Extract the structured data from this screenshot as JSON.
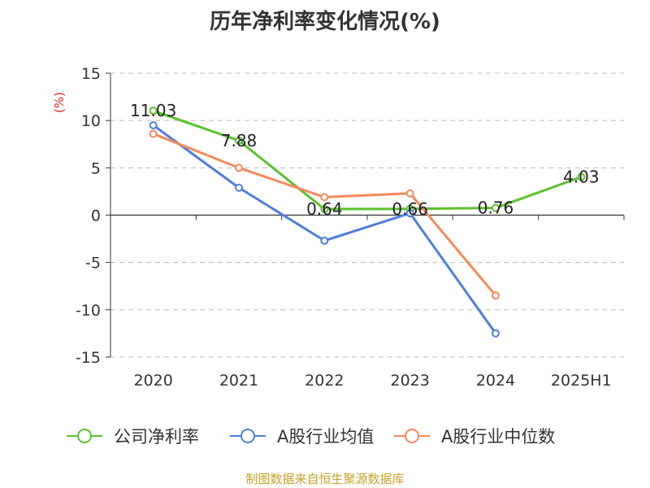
{
  "title": "历年净利率变化情况(%)",
  "source": "制图数据来自恒生聚源数据库",
  "colors": {
    "company": "#5cc22c",
    "industry_avg": "#4e7fdd",
    "industry_median": "#f5895a",
    "ylabel": "#e02020",
    "axis": "#333333",
    "grid": "#bbbbbb",
    "tick_text": "#333333"
  },
  "chart_data": {
    "type": "line",
    "title": "历年净利率变化情况(%)",
    "ylabel": "(%)",
    "xlabel": "",
    "ylim": [
      -15,
      15
    ],
    "yticks": [
      15,
      10,
      5,
      0,
      -5,
      -10,
      -15
    ],
    "categories": [
      "2020",
      "2021",
      "2022",
      "2023",
      "2024",
      "2025H1"
    ],
    "grid": true,
    "legend_position": "bottom",
    "series": [
      {
        "name": "公司净利率",
        "color_key": "company",
        "values": [
          11.03,
          7.88,
          0.64,
          0.66,
          0.76,
          4.03
        ],
        "labels": [
          "11.03",
          "7.88",
          "0.64",
          "0.66",
          "0.76",
          "4.03"
        ]
      },
      {
        "name": "A股行业均值",
        "color_key": "industry_avg",
        "values": [
          9.5,
          2.9,
          -2.7,
          0.2,
          -12.5,
          null
        ]
      },
      {
        "name": "A股行业中位数",
        "color_key": "industry_median",
        "values": [
          8.6,
          5.0,
          1.9,
          2.3,
          -8.5,
          null
        ]
      }
    ]
  }
}
